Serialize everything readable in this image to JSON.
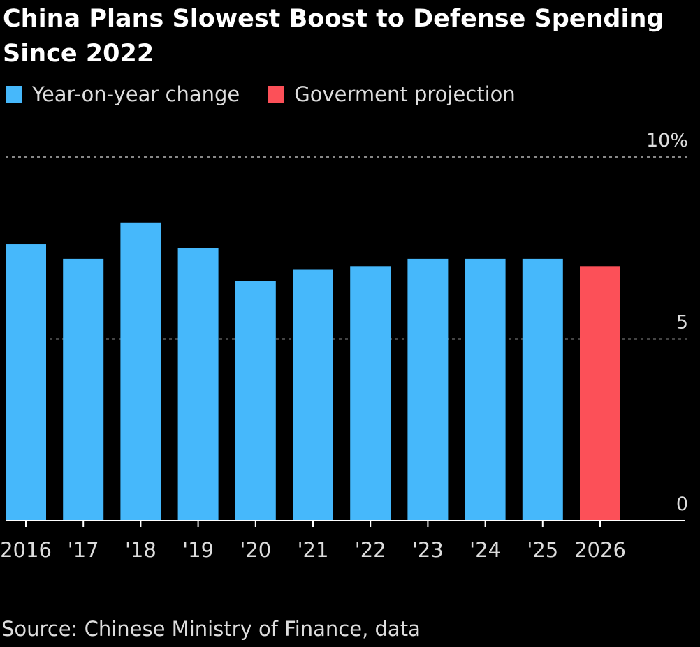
{
  "chart_data": {
    "type": "bar",
    "title": "China Plans Slowest Boost to Defense Spending Since 2022",
    "categories": [
      "2016",
      "'17",
      "'18",
      "'19",
      "'20",
      "'21",
      "'22",
      "'23",
      "'24",
      "'25",
      "2026"
    ],
    "values": [
      7.6,
      7.2,
      8.2,
      7.5,
      6.6,
      6.9,
      7.0,
      7.2,
      7.2,
      7.2,
      7.0
    ],
    "bar_series": [
      "Year-on-year change",
      "Year-on-year change",
      "Year-on-year change",
      "Year-on-year change",
      "Year-on-year change",
      "Year-on-year change",
      "Year-on-year change",
      "Year-on-year change",
      "Year-on-year change",
      "Year-on-year change",
      "Goverment projection"
    ],
    "legend": [
      {
        "name": "Year-on-year change",
        "color": "#46b8fb"
      },
      {
        "name": "Goverment projection",
        "color": "#fc5058"
      }
    ],
    "legend_placement": "top-left",
    "ylim": [
      0,
      10
    ],
    "yticks": [
      0,
      5,
      10
    ],
    "ytick_labels": [
      "0",
      "5",
      "10%"
    ],
    "grid": true,
    "xlabel": "",
    "ylabel": "",
    "source": "Source: Chinese Ministry of Finance, data"
  }
}
